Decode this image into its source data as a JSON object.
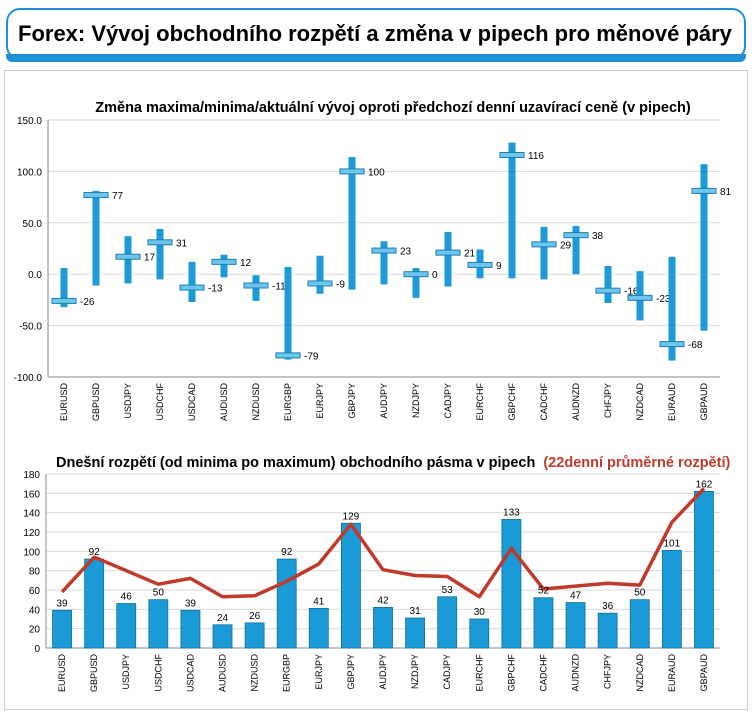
{
  "page": {
    "title": "Forex: Vývoj obchodního rozpětí a změna v pipech pro měnové páry"
  },
  "colors": {
    "accent": "#1f8fd6",
    "bar": "#1a9ad6",
    "line": "#c0392b",
    "marker": "#6fc6ec"
  },
  "chart_data": [
    {
      "type": "range",
      "title": "Změna maxima/minima/aktuální vývoj oproti předchozí denní uzavírací ceně (v pipech)",
      "categories": [
        "EURUSD",
        "GBPUSD",
        "USDJPY",
        "USDCHF",
        "USDCAD",
        "AUDUSD",
        "NZDUSD",
        "EURGBP",
        "EURJPY",
        "GBPJPY",
        "AUDJPY",
        "NZDJPY",
        "CADJPY",
        "EURCHF",
        "GBPCHF",
        "CADCHF",
        "AUDNZD",
        "CHFJPY",
        "NZDCAD",
        "EURAUD",
        "GBPAUD"
      ],
      "high": [
        6,
        81,
        37,
        44,
        12,
        19,
        -1,
        7,
        18,
        114,
        32,
        6,
        41,
        24,
        128,
        46,
        47,
        8,
        3,
        17,
        107
      ],
      "low": [
        -32,
        -11,
        -9,
        -5,
        -27,
        -3,
        -26,
        -83,
        -19,
        -15,
        -10,
        -23,
        -12,
        -4,
        -4,
        -5,
        0,
        -28,
        -45,
        -84,
        -55
      ],
      "current": [
        -26,
        77,
        17,
        31,
        -13,
        12,
        -11,
        -79,
        -9,
        100,
        23,
        0,
        21,
        9,
        116,
        29,
        38,
        -16,
        -23,
        -68,
        81
      ],
      "current_labels": [
        "-26",
        "77",
        "17",
        "31",
        "-13",
        "12",
        "-11",
        "-79",
        "-9",
        "100",
        "23",
        "0",
        "21",
        "9",
        "116",
        "29",
        "38",
        "-16",
        "-23",
        "-68",
        "81"
      ],
      "ylim": [
        -100,
        150
      ],
      "yticks": [
        "150.0",
        "100.0",
        "50.0",
        "0.0",
        "-50.0",
        "-100.0"
      ],
      "ytick_values": [
        150,
        100,
        50,
        0,
        -50,
        -100
      ]
    },
    {
      "type": "bar+line",
      "title": "Dnešní rozpětí (od minima po maximum) obchodního pásma v pipech",
      "title_extra": "(22denní průměrné rozpětí)",
      "categories": [
        "EURUSD",
        "GBPUSD",
        "USDJPY",
        "USDCHF",
        "USDCAD",
        "AUDUSD",
        "NZDUSD",
        "EURGBP",
        "EURJPY",
        "GBPJPY",
        "AUDJPY",
        "NZDJPY",
        "CADJPY",
        "EURCHF",
        "GBPCHF",
        "CADCHF",
        "AUDNZD",
        "CHFJPY",
        "NZDCAD",
        "EURAUD",
        "GBPAUD"
      ],
      "values": [
        39,
        92,
        46,
        50,
        39,
        24,
        26,
        92,
        41,
        129,
        42,
        31,
        53,
        30,
        133,
        52,
        47,
        36,
        50,
        101,
        162
      ],
      "value_labels": [
        "39",
        "92",
        "46",
        "50",
        "39",
        "24",
        "26",
        "92",
        "41",
        "129",
        "42",
        "31",
        "53",
        "30",
        "133",
        "52",
        "47",
        "36",
        "50",
        "101",
        "162"
      ],
      "average": [
        58,
        94,
        80,
        66,
        72,
        53,
        54,
        69,
        87,
        128,
        81,
        75,
        74,
        53,
        103,
        61,
        64,
        67,
        65,
        130,
        165
      ],
      "ylim": [
        0,
        180
      ],
      "yticks": [
        "180",
        "160",
        "140",
        "120",
        "100",
        "80",
        "60",
        "40",
        "20",
        "0"
      ],
      "ytick_values": [
        180,
        160,
        140,
        120,
        100,
        80,
        60,
        40,
        20,
        0
      ]
    }
  ]
}
